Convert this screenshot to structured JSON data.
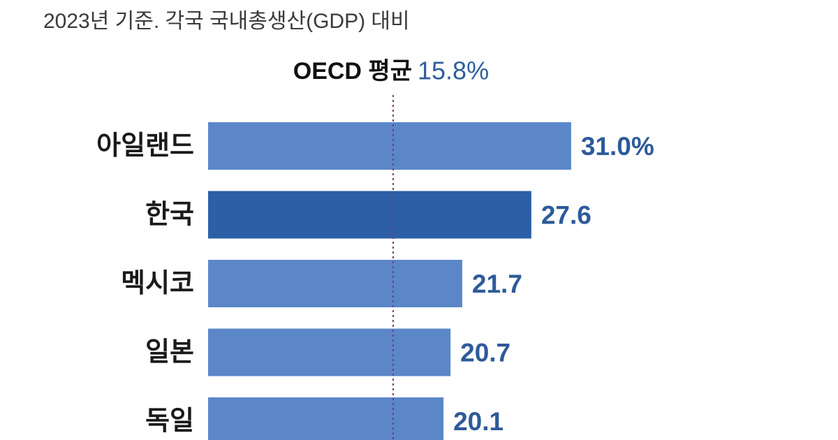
{
  "chart_data": {
    "type": "hbar",
    "subtitle": "2023년 기준. 각국 국내총생산(GDP) 대비",
    "reference": {
      "label": "OECD 평균",
      "value": 15.8,
      "value_label": "15.8%",
      "color": "#7a3b78"
    },
    "categories": [
      "아일랜드",
      "한국",
      "멕시코",
      "일본",
      "독일"
    ],
    "values": [
      31.0,
      27.6,
      21.7,
      20.7,
      20.1
    ],
    "value_labels": [
      "31.0%",
      "27.6",
      "21.7",
      "20.7",
      "20.1"
    ],
    "colors": [
      "#5b87c8",
      "#2c5fa6",
      "#5b87c8",
      "#5b87c8",
      "#5b87c8"
    ]
  }
}
